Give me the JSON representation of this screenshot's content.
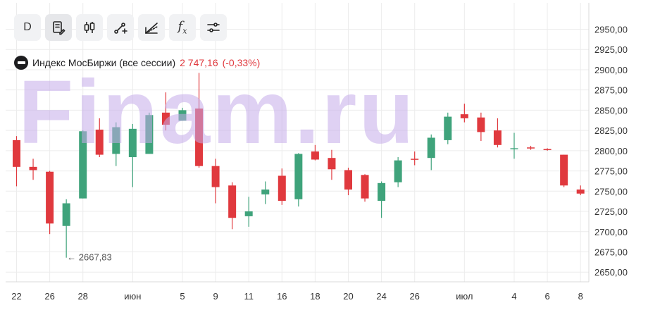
{
  "toolbar": {
    "interval_label": "D",
    "buttons": [
      {
        "name": "interval-button",
        "icon": "text-D"
      },
      {
        "name": "chart-settings-button",
        "icon": "document-edit-icon"
      },
      {
        "name": "candles-button",
        "icon": "candles-icon"
      },
      {
        "name": "drawing-tools-button",
        "icon": "line-tool-icon"
      },
      {
        "name": "fibonacci-button",
        "icon": "fib-fan-icon"
      },
      {
        "name": "indicators-button",
        "icon": "fx-icon"
      },
      {
        "name": "settings-button",
        "icon": "sliders-icon"
      }
    ],
    "fx_label": "f",
    "fx_sub": "x"
  },
  "legend": {
    "name": "Индекс МосБиржи (все сессии)",
    "price": "2 747,16",
    "change": "(-0,33%)"
  },
  "watermark": "Finam.ru",
  "colors": {
    "up": "#3fa37b",
    "down": "#e0393e",
    "grid": "#ececec",
    "axis_line": "#d8d8d8"
  },
  "chart_data": {
    "type": "candlestick",
    "y_ticks": [
      "2950,00",
      "2925,00",
      "2900,00",
      "2875,00",
      "2850,00",
      "2825,00",
      "2800,00",
      "2775,00",
      "2750,00",
      "2725,00",
      "2700,00",
      "2675,00",
      "2650,00"
    ],
    "y_tick_values": [
      2950,
      2925,
      2900,
      2875,
      2850,
      2825,
      2800,
      2775,
      2750,
      2725,
      2700,
      2675,
      2650
    ],
    "ylim": [
      2638,
      2960
    ],
    "x_labels": [
      {
        "label": "22",
        "i": 0
      },
      {
        "label": "26",
        "i": 2
      },
      {
        "label": "28",
        "i": 4
      },
      {
        "label": "июн",
        "i": 7
      },
      {
        "label": "5",
        "i": 10
      },
      {
        "label": "9",
        "i": 12
      },
      {
        "label": "11",
        "i": 14
      },
      {
        "label": "16",
        "i": 16
      },
      {
        "label": "18",
        "i": 18
      },
      {
        "label": "20",
        "i": 20
      },
      {
        "label": "24",
        "i": 22
      },
      {
        "label": "26",
        "i": 24
      },
      {
        "label": "июл",
        "i": 27
      },
      {
        "label": "4",
        "i": 30
      },
      {
        "label": "6",
        "i": 32
      },
      {
        "label": "8",
        "i": 34
      }
    ],
    "candles": [
      {
        "o": 2813,
        "h": 2818,
        "l": 2756,
        "c": 2780
      },
      {
        "o": 2780,
        "h": 2790,
        "l": 2764,
        "c": 2776
      },
      {
        "o": 2774,
        "h": 2775,
        "l": 2697,
        "c": 2710
      },
      {
        "o": 2707,
        "h": 2740,
        "l": 2667.83,
        "c": 2735
      },
      {
        "o": 2741,
        "h": 2825,
        "l": 2741,
        "c": 2824
      },
      {
        "o": 2826,
        "h": 2840,
        "l": 2792,
        "c": 2795
      },
      {
        "o": 2796,
        "h": 2835,
        "l": 2781,
        "c": 2829
      },
      {
        "o": 2792,
        "h": 2833,
        "l": 2755,
        "c": 2827
      },
      {
        "o": 2796,
        "h": 2847,
        "l": 2796,
        "c": 2844
      },
      {
        "o": 2847,
        "h": 2872,
        "l": 2825,
        "c": 2832
      },
      {
        "o": 2837,
        "h": 2853,
        "l": 2837,
        "c": 2850
      },
      {
        "o": 2852,
        "h": 2896,
        "l": 2779,
        "c": 2781
      },
      {
        "o": 2781,
        "h": 2790,
        "l": 2735,
        "c": 2755
      },
      {
        "o": 2757,
        "h": 2761,
        "l": 2703,
        "c": 2717
      },
      {
        "o": 2719,
        "h": 2743,
        "l": 2706,
        "c": 2725
      },
      {
        "o": 2746,
        "h": 2762,
        "l": 2734,
        "c": 2752
      },
      {
        "o": 2769,
        "h": 2778,
        "l": 2733,
        "c": 2738
      },
      {
        "o": 2740,
        "h": 2797,
        "l": 2731,
        "c": 2796
      },
      {
        "o": 2799,
        "h": 2807,
        "l": 2788,
        "c": 2789
      },
      {
        "o": 2791,
        "h": 2801,
        "l": 2764,
        "c": 2777
      },
      {
        "o": 2776,
        "h": 2779,
        "l": 2745,
        "c": 2752
      },
      {
        "o": 2770,
        "h": 2771,
        "l": 2737,
        "c": 2741
      },
      {
        "o": 2738,
        "h": 2762,
        "l": 2717,
        "c": 2760
      },
      {
        "o": 2761,
        "h": 2792,
        "l": 2755,
        "c": 2788
      },
      {
        "o": 2790,
        "h": 2799,
        "l": 2782,
        "c": 2789
      },
      {
        "o": 2791,
        "h": 2820,
        "l": 2776,
        "c": 2816
      },
      {
        "o": 2813,
        "h": 2847,
        "l": 2808,
        "c": 2842
      },
      {
        "o": 2845,
        "h": 2858,
        "l": 2835,
        "c": 2840
      },
      {
        "o": 2841,
        "h": 2847,
        "l": 2812,
        "c": 2823
      },
      {
        "o": 2825,
        "h": 2840,
        "l": 2804,
        "c": 2807
      },
      {
        "o": 2802,
        "h": 2822,
        "l": 2790,
        "c": 2803
      },
      {
        "o": 2804,
        "h": 2806,
        "l": 2801,
        "c": 2803
      },
      {
        "o": 2802,
        "h": 2803,
        "l": 2800,
        "c": 2801
      },
      {
        "o": 2795,
        "h": 2795,
        "l": 2755,
        "c": 2757
      },
      {
        "o": 2752,
        "h": 2757,
        "l": 2745,
        "c": 2747
      }
    ],
    "annotation": {
      "text": "← 2667,83",
      "i": 3,
      "value": 2667.83
    }
  }
}
